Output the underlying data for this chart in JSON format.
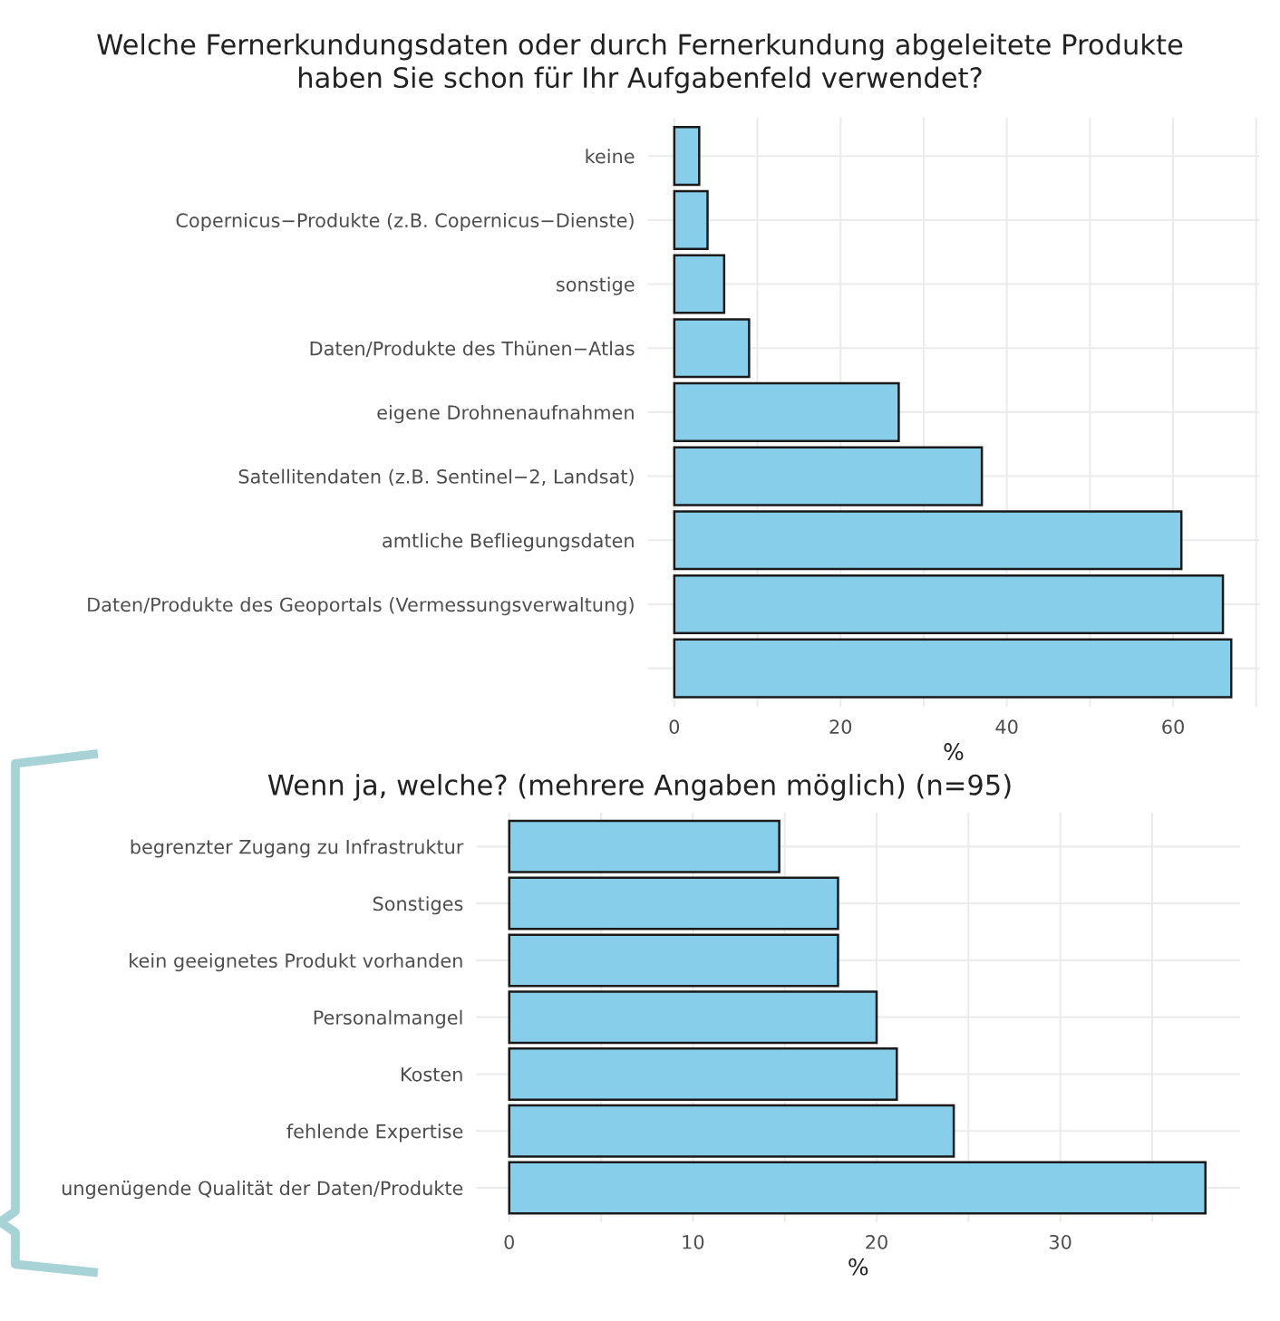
{
  "chart_data": [
    {
      "type": "bar",
      "orientation": "horizontal",
      "title": "Welche Fernerkundungsdaten oder durch Fernerkundung abgeleitete Produkte\nhaben Sie schon für Ihr Aufgabenfeld verwendet?",
      "xlabel": "%",
      "categories": [
        "keine",
        "Copernicus−Produkte (z.B. Copernicus−Dienste)",
        "sonstige",
        "Daten/Produkte des Thünen−Atlas",
        "eigene Drohnenaufnahmen",
        "Satellitendaten (z.B. Sentinel−2, Landsat)",
        "amtliche Befliegungsdaten",
        "Daten/Produkte des Geoportals (Vermessungsverwaltung)",
        null
      ],
      "values": [
        3,
        4,
        6,
        9,
        27,
        37,
        61,
        66,
        67
      ],
      "color": "#87ceeb",
      "xlim": [
        -3.2,
        70.4
      ],
      "xticks": [
        0,
        {
          "value": 10,
          "label": null
        },
        20,
        {
          "value": 30,
          "label": null
        },
        40,
        {
          "value": 50,
          "label": null
        },
        60,
        {
          "value": 70,
          "label": null
        }
      ],
      "grid": true
    },
    {
      "type": "bar",
      "orientation": "horizontal",
      "title": "Wenn ja, welche? (mehrere Angaben möglich) (n=95)",
      "xlabel": "%",
      "categories": [
        "begrenzter Zugang zu Infrastruktur",
        "Sonstiges",
        "kein geeignetes Produkt vorhanden",
        "Personalmangel",
        "Kosten",
        "fehlende Expertise",
        "ungenügende Qualität der Daten/Produkte"
      ],
      "values": [
        14.7,
        17.9,
        17.9,
        20.0,
        21.1,
        24.2,
        37.9
      ],
      "color": "#87ceeb",
      "xlim": [
        -1.8,
        39.8
      ],
      "xticks": [
        0,
        {
          "value": 5,
          "label": null
        },
        10,
        {
          "value": 15,
          "label": null
        },
        20,
        {
          "value": 25,
          "label": null
        },
        30,
        {
          "value": 35,
          "label": null
        }
      ],
      "grid": true
    }
  ]
}
